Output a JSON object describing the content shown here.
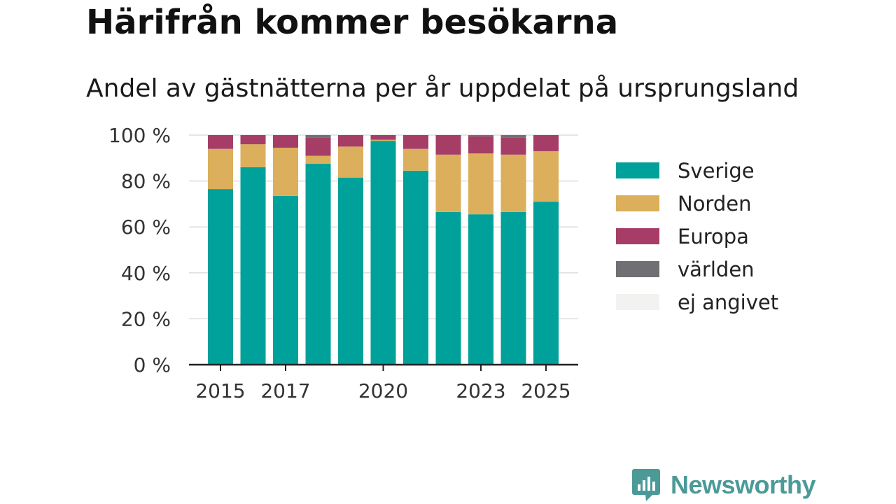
{
  "title": "Härifrån kommer besökarna",
  "subtitle": "Andel av gästnätterna per år uppdelat på ursprungsland",
  "brand": {
    "name": "Newsworthy",
    "icon": "newsworthy-logo-icon",
    "color": "#4c9a98"
  },
  "chart_data": {
    "type": "bar",
    "stacked": true,
    "categories": [
      "2015",
      "2016",
      "2017",
      "2018",
      "2019",
      "2020",
      "2021",
      "2022",
      "2023",
      "2024",
      "2025"
    ],
    "x_tick_labels": [
      "2015",
      "",
      "2017",
      "",
      "",
      "2020",
      "",
      "",
      "2023",
      "",
      "2025"
    ],
    "ylim": [
      0,
      100
    ],
    "y_ticks": [
      0,
      20,
      40,
      60,
      80,
      100
    ],
    "y_tick_labels": [
      "0 %",
      "20 %",
      "40 %",
      "60 %",
      "80 %",
      "100 %"
    ],
    "grid": true,
    "legend_position": "right",
    "series": [
      {
        "name": "Sverige",
        "color": "#00a19a",
        "values": [
          76.5,
          86,
          73.5,
          87.5,
          81.5,
          97.5,
          84.5,
          66.5,
          65.5,
          66.5,
          71
        ]
      },
      {
        "name": "Norden",
        "color": "#dbaf5b",
        "values": [
          17.5,
          10,
          21,
          3.5,
          13.5,
          0.5,
          9.5,
          25,
          26.5,
          25,
          22
        ]
      },
      {
        "name": "Europa",
        "color": "#a63d67",
        "values": [
          6,
          4,
          5.5,
          8,
          5,
          2,
          6,
          8.5,
          7.5,
          7.5,
          7
        ]
      },
      {
        "name": "världen",
        "color": "#6f6f74",
        "values": [
          0,
          0,
          0,
          1,
          0,
          0,
          0,
          0,
          0.5,
          1,
          0
        ]
      },
      {
        "name": "ej angivet",
        "color": "#f2f2f0",
        "values": [
          0,
          0,
          0,
          0,
          0,
          0,
          0,
          0,
          0,
          0,
          0
        ]
      }
    ]
  }
}
